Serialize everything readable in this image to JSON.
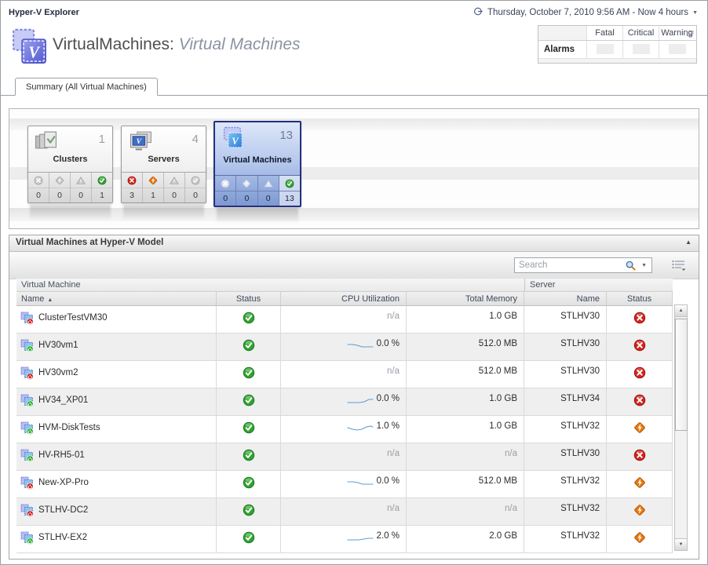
{
  "app": {
    "title": "Hyper-V Explorer"
  },
  "timebar": {
    "label": "Thursday, October 7, 2010 9:56 AM - Now 4 hours"
  },
  "header": {
    "title": "VirtualMachines:",
    "subtitle": "Virtual Machines"
  },
  "alarms": {
    "label": "Alarms",
    "columns": [
      "Fatal",
      "Critical",
      "Warning"
    ],
    "counts": [
      "",
      "",
      ""
    ]
  },
  "tab": {
    "label": "Summary (All Virtual Machines)"
  },
  "tiles": [
    {
      "name": "Clusters",
      "count": "1",
      "icon": "clusters",
      "selected": false,
      "statuses": [
        {
          "type": "fatal",
          "count": "0",
          "active": false
        },
        {
          "type": "critical",
          "count": "0",
          "active": false
        },
        {
          "type": "warning",
          "count": "0",
          "active": false
        },
        {
          "type": "normal",
          "count": "1",
          "active": true
        }
      ]
    },
    {
      "name": "Servers",
      "count": "4",
      "icon": "servers",
      "selected": false,
      "statuses": [
        {
          "type": "fatal",
          "count": "3",
          "active": true
        },
        {
          "type": "critical",
          "count": "1",
          "active": true
        },
        {
          "type": "warning",
          "count": "0",
          "active": false
        },
        {
          "type": "normal",
          "count": "0",
          "active": false
        }
      ]
    },
    {
      "name": "Virtual Machines",
      "count": "13",
      "icon": "vms",
      "selected": true,
      "statuses": [
        {
          "type": "fatal",
          "count": "0",
          "active": false
        },
        {
          "type": "critical",
          "count": "0",
          "active": false
        },
        {
          "type": "warning",
          "count": "0",
          "active": false
        },
        {
          "type": "normal",
          "count": "13",
          "active": true
        }
      ]
    }
  ],
  "panel": {
    "title": "Virtual Machines at Hyper-V Model",
    "search_placeholder": "Search",
    "groups": [
      "Virtual Machine",
      "Server"
    ],
    "columns": [
      "Name",
      "Status",
      "CPU Utilization",
      "Total Memory",
      "Name",
      "Status"
    ],
    "rows": [
      {
        "name": "ClusterTestVM30",
        "power": "off",
        "status": "normal",
        "cpu": "n/a",
        "spark": null,
        "memory": "1.0 GB",
        "server": "STLHV30",
        "server_status": "fatal"
      },
      {
        "name": "HV30vm1",
        "power": "on",
        "status": "normal",
        "cpu": "0.0 %",
        "spark": [
          [
            1,
            4
          ],
          [
            7,
            4
          ],
          [
            13,
            5
          ],
          [
            19,
            7
          ],
          [
            26,
            7
          ],
          [
            33,
            7
          ]
        ],
        "memory": "512.0 MB",
        "server": "STLHV30",
        "server_status": "fatal"
      },
      {
        "name": "HV30vm2",
        "power": "off",
        "status": "normal",
        "cpu": "n/a",
        "spark": null,
        "memory": "512.0 MB",
        "server": "STLHV30",
        "server_status": "fatal"
      },
      {
        "name": "HV34_XP01",
        "power": "on",
        "status": "normal",
        "cpu": "0.0 %",
        "spark": [
          [
            1,
            8
          ],
          [
            9,
            8
          ],
          [
            16,
            8
          ],
          [
            22,
            7
          ],
          [
            28,
            4
          ],
          [
            33,
            4
          ]
        ],
        "memory": "1.0 GB",
        "server": "STLHV34",
        "server_status": "fatal"
      },
      {
        "name": "HVM-DiskTests",
        "power": "on",
        "status": "normal",
        "cpu": "1.0 %",
        "spark": [
          [
            1,
            5
          ],
          [
            7,
            7
          ],
          [
            13,
            8
          ],
          [
            19,
            7
          ],
          [
            25,
            4
          ],
          [
            30,
            3
          ],
          [
            33,
            4
          ]
        ],
        "memory": "1.0 GB",
        "server": "STLHV32",
        "server_status": "critical"
      },
      {
        "name": "HV-RH5-01",
        "power": "on",
        "status": "normal",
        "cpu": "n/a",
        "spark": null,
        "memory": "n/a",
        "server": "STLHV30",
        "server_status": "fatal"
      },
      {
        "name": "New-XP-Pro",
        "power": "off",
        "status": "normal",
        "cpu": "0.0 %",
        "spark": [
          [
            1,
            4
          ],
          [
            8,
            4
          ],
          [
            14,
            5
          ],
          [
            20,
            7
          ],
          [
            27,
            7
          ],
          [
            33,
            7
          ]
        ],
        "memory": "512.0 MB",
        "server": "STLHV32",
        "server_status": "critical"
      },
      {
        "name": "STLHV-DC2",
        "power": "off",
        "status": "normal",
        "cpu": "n/a",
        "spark": null,
        "memory": "n/a",
        "server": "STLHV32",
        "server_status": "critical"
      },
      {
        "name": "STLHV-EX2",
        "power": "on",
        "status": "normal",
        "cpu": "2.0 %",
        "spark": [
          [
            1,
            8
          ],
          [
            9,
            8
          ],
          [
            15,
            8
          ],
          [
            21,
            7
          ],
          [
            27,
            6
          ],
          [
            33,
            6
          ]
        ],
        "memory": "2.0 GB",
        "server": "STLHV32",
        "server_status": "critical"
      }
    ]
  },
  "colors": {
    "status_normal": "#2fa42f",
    "status_normal_border": "#1b7a1b",
    "status_fatal": "#d2251c",
    "status_fatal_border": "#9c120c",
    "status_critical": "#ea7a10",
    "status_critical_border": "#b65708",
    "status_inactive": "#c9c9c9",
    "status_inactive_border": "#a0a0a0",
    "status_faded": "#dce2f0",
    "status_faded_border": "#b9c3da",
    "selected_tile_border": "#25317e",
    "sparkline": "#5b9bd5",
    "power_on": "#1faa1f",
    "power_off": "#cc1111"
  }
}
